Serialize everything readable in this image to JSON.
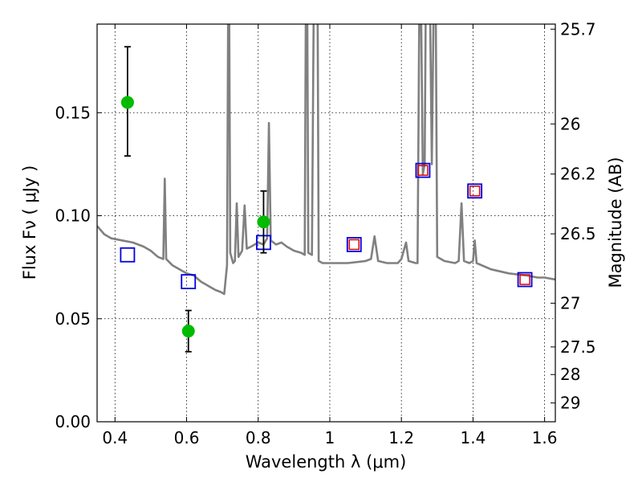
{
  "chart_data": {
    "type": "scatter",
    "xlabel": "Wavelength  λ (μm)",
    "ylabel": "Flux  Fν  ( μJy )",
    "y2label": "Magnitude (AB)",
    "xlim": [
      0.35,
      1.63
    ],
    "ylim": [
      0.0,
      0.193
    ],
    "xticks": [
      {
        "value": 0.4,
        "label": "0.4"
      },
      {
        "value": 0.6,
        "label": "0.6"
      },
      {
        "value": 0.8,
        "label": "0.8"
      },
      {
        "value": 1.0,
        "label": "1"
      },
      {
        "value": 1.2,
        "label": "1.2"
      },
      {
        "value": 1.4,
        "label": "1.4"
      },
      {
        "value": 1.6,
        "label": "1.6"
      }
    ],
    "yticks": [
      {
        "value": 0.0,
        "label": "0.00"
      },
      {
        "value": 0.05,
        "label": "0.05"
      },
      {
        "value": 0.1,
        "label": "0.10"
      },
      {
        "value": 0.15,
        "label": "0.15"
      }
    ],
    "y2ticks": [
      {
        "mag": 25.7,
        "label": "25.7"
      },
      {
        "mag": 26.0,
        "label": "26"
      },
      {
        "mag": 26.2,
        "label": "26.2"
      },
      {
        "mag": 26.5,
        "label": "26.5"
      },
      {
        "mag": 27.0,
        "label": "27"
      },
      {
        "mag": 27.5,
        "label": "27.5"
      },
      {
        "mag": 28.0,
        "label": "28"
      },
      {
        "mag": 29.0,
        "label": "29"
      }
    ],
    "grid": true,
    "colors": {
      "spectrum": "#808080",
      "observed": "#00bb00",
      "model_box": "#0000dd",
      "model_inner": "#dd0000"
    },
    "series": [
      {
        "kind": "line",
        "points": [
          [
            0.35,
            0.095
          ],
          [
            0.37,
            0.091
          ],
          [
            0.39,
            0.089
          ],
          [
            0.42,
            0.088
          ],
          [
            0.45,
            0.087
          ],
          [
            0.48,
            0.085
          ],
          [
            0.5,
            0.083
          ],
          [
            0.52,
            0.08
          ],
          [
            0.535,
            0.079
          ],
          [
            0.539,
            0.118
          ],
          [
            0.543,
            0.079
          ],
          [
            0.56,
            0.076
          ],
          [
            0.58,
            0.074
          ],
          [
            0.6,
            0.072
          ],
          [
            0.62,
            0.071
          ],
          [
            0.64,
            0.068
          ],
          [
            0.66,
            0.066
          ],
          [
            0.68,
            0.064
          ],
          [
            0.695,
            0.063
          ],
          [
            0.705,
            0.062
          ],
          [
            0.713,
            0.076
          ],
          [
            0.716,
            0.2
          ],
          [
            0.719,
            0.2
          ],
          [
            0.722,
            0.082
          ],
          [
            0.73,
            0.077
          ],
          [
            0.735,
            0.078
          ],
          [
            0.74,
            0.106
          ],
          [
            0.745,
            0.08
          ],
          [
            0.755,
            0.083
          ],
          [
            0.762,
            0.105
          ],
          [
            0.768,
            0.084
          ],
          [
            0.78,
            0.085
          ],
          [
            0.8,
            0.087
          ],
          [
            0.815,
            0.086
          ],
          [
            0.825,
            0.089
          ],
          [
            0.83,
            0.145
          ],
          [
            0.835,
            0.088
          ],
          [
            0.85,
            0.086
          ],
          [
            0.865,
            0.087
          ],
          [
            0.88,
            0.085
          ],
          [
            0.9,
            0.083
          ],
          [
            0.92,
            0.082
          ],
          [
            0.93,
            0.081
          ],
          [
            0.933,
            0.2
          ],
          [
            0.937,
            0.2
          ],
          [
            0.94,
            0.082
          ],
          [
            0.95,
            0.081
          ],
          [
            0.955,
            0.2
          ],
          [
            0.96,
            0.2
          ],
          [
            0.963,
            0.2
          ],
          [
            0.966,
            0.2
          ],
          [
            0.969,
            0.078
          ],
          [
            0.98,
            0.077
          ],
          [
            1.0,
            0.077
          ],
          [
            1.05,
            0.077
          ],
          [
            1.1,
            0.078
          ],
          [
            1.115,
            0.079
          ],
          [
            1.125,
            0.09
          ],
          [
            1.135,
            0.078
          ],
          [
            1.16,
            0.077
          ],
          [
            1.19,
            0.077
          ],
          [
            1.2,
            0.079
          ],
          [
            1.213,
            0.087
          ],
          [
            1.22,
            0.078
          ],
          [
            1.24,
            0.077
          ],
          [
            1.245,
            0.077
          ],
          [
            1.25,
            0.2
          ],
          [
            1.255,
            0.2
          ],
          [
            1.26,
            0.12
          ],
          [
            1.265,
            0.125
          ],
          [
            1.268,
            0.2
          ],
          [
            1.272,
            0.2
          ],
          [
            1.28,
            0.2
          ],
          [
            1.285,
            0.125
          ],
          [
            1.29,
            0.2
          ],
          [
            1.296,
            0.2
          ],
          [
            1.3,
            0.08
          ],
          [
            1.32,
            0.078
          ],
          [
            1.35,
            0.077
          ],
          [
            1.36,
            0.078
          ],
          [
            1.368,
            0.106
          ],
          [
            1.375,
            0.078
          ],
          [
            1.39,
            0.077
          ],
          [
            1.4,
            0.078
          ],
          [
            1.405,
            0.088
          ],
          [
            1.41,
            0.077
          ],
          [
            1.45,
            0.074
          ],
          [
            1.5,
            0.072
          ],
          [
            1.55,
            0.071
          ],
          [
            1.58,
            0.07
          ],
          [
            1.6,
            0.07
          ],
          [
            1.63,
            0.069
          ]
        ]
      },
      {
        "kind": "points_with_errorbars",
        "points": [
          {
            "x": 0.435,
            "y": 0.155,
            "ylow": 0.129,
            "yhigh": 0.182
          },
          {
            "x": 0.605,
            "y": 0.044,
            "ylow": 0.034,
            "yhigh": 0.054
          },
          {
            "x": 0.815,
            "y": 0.097,
            "ylow": 0.082,
            "yhigh": 0.112
          }
        ]
      },
      {
        "kind": "squares",
        "points": [
          {
            "x": 0.435,
            "y": 0.081,
            "inner": false
          },
          {
            "x": 0.605,
            "y": 0.068,
            "inner": false
          },
          {
            "x": 0.815,
            "y": 0.087,
            "inner": false
          },
          {
            "x": 1.068,
            "y": 0.086,
            "inner": true
          },
          {
            "x": 1.26,
            "y": 0.122,
            "inner": true
          },
          {
            "x": 1.405,
            "y": 0.112,
            "inner": true
          },
          {
            "x": 1.545,
            "y": 0.069,
            "inner": true
          }
        ]
      }
    ]
  }
}
